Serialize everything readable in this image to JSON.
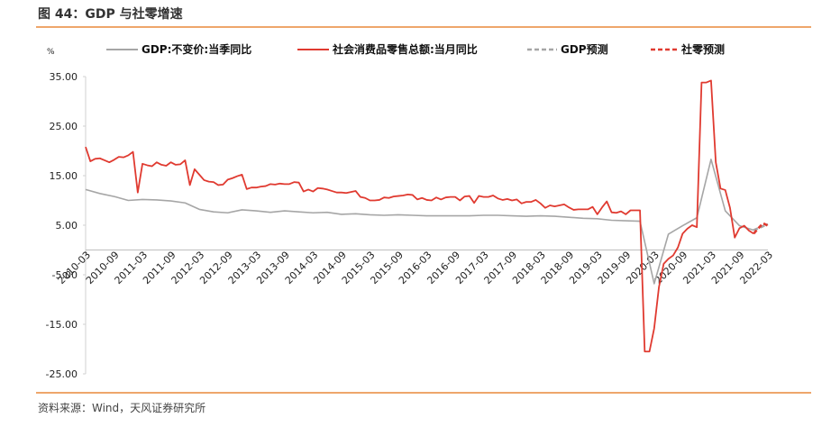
{
  "header": {
    "title": "图 44：GDP 与社零增速"
  },
  "chart_data": {
    "type": "line",
    "y_unit": "%",
    "xlim": [
      "2010-03",
      "2022-03"
    ],
    "xticks": [
      "2010-03",
      "2010-09",
      "2011-03",
      "2011-09",
      "2012-03",
      "2012-09",
      "2013-03",
      "2013-09",
      "2014-03",
      "2014-09",
      "2015-03",
      "2015-09",
      "2016-03",
      "2016-09",
      "2017-03",
      "2017-09",
      "2018-03",
      "2018-09",
      "2019-03",
      "2019-09",
      "2020-03",
      "2020-09",
      "2021-03",
      "2021-09",
      "2022-03"
    ],
    "ylim": [
      -25,
      35
    ],
    "yticks": [
      {
        "value": 35,
        "label": "35.00"
      },
      {
        "value": 25,
        "label": "25.00"
      },
      {
        "value": 15,
        "label": "15.00"
      },
      {
        "value": 5,
        "label": "5.00"
      },
      {
        "value": -5,
        "label": "-5.00"
      },
      {
        "value": -15,
        "label": "-15.00"
      },
      {
        "value": -25,
        "label": "-25.00"
      }
    ],
    "grid": false,
    "legend": "top",
    "series": [
      {
        "name": "GDP:不变价:当季同比",
        "color": "#a6a6a6",
        "dashed": false,
        "x": [
          "2010-03",
          "2010-06",
          "2010-09",
          "2010-12",
          "2011-03",
          "2011-06",
          "2011-09",
          "2011-12",
          "2012-03",
          "2012-06",
          "2012-09",
          "2012-12",
          "2013-03",
          "2013-06",
          "2013-09",
          "2013-12",
          "2014-03",
          "2014-06",
          "2014-09",
          "2014-12",
          "2015-03",
          "2015-06",
          "2015-09",
          "2015-12",
          "2016-03",
          "2016-06",
          "2016-09",
          "2016-12",
          "2017-03",
          "2017-06",
          "2017-09",
          "2017-12",
          "2018-03",
          "2018-06",
          "2018-09",
          "2018-12",
          "2019-03",
          "2019-06",
          "2019-09",
          "2019-12",
          "2020-03",
          "2020-06",
          "2020-09",
          "2020-12",
          "2021-03",
          "2021-06",
          "2021-09",
          "2021-12"
        ],
        "values": [
          12.2,
          11.4,
          10.8,
          10.0,
          10.2,
          10.1,
          9.9,
          9.5,
          8.2,
          7.7,
          7.5,
          8.1,
          7.9,
          7.6,
          7.9,
          7.7,
          7.5,
          7.6,
          7.2,
          7.3,
          7.1,
          7.0,
          7.1,
          7.0,
          6.9,
          6.9,
          6.9,
          6.9,
          7.0,
          7.0,
          6.9,
          6.8,
          6.9,
          6.8,
          6.6,
          6.4,
          6.3,
          6.0,
          5.9,
          5.8,
          -6.8,
          3.2,
          4.9,
          6.5,
          18.3,
          7.9,
          4.9,
          4.0
        ]
      },
      {
        "name": "社会消费品零售总额:当月同比",
        "color": "#e03a30",
        "dashed": false,
        "x": [
          "2010-03",
          "2010-04",
          "2010-05",
          "2010-06",
          "2010-07",
          "2010-08",
          "2010-09",
          "2010-10",
          "2010-11",
          "2010-12",
          "2011-01",
          "2011-02",
          "2011-03",
          "2011-04",
          "2011-05",
          "2011-06",
          "2011-07",
          "2011-08",
          "2011-09",
          "2011-10",
          "2011-11",
          "2011-12",
          "2012-01",
          "2012-02",
          "2012-03",
          "2012-04",
          "2012-05",
          "2012-06",
          "2012-07",
          "2012-08",
          "2012-09",
          "2012-10",
          "2012-11",
          "2012-12",
          "2013-01",
          "2013-02",
          "2013-03",
          "2013-04",
          "2013-05",
          "2013-06",
          "2013-07",
          "2013-08",
          "2013-09",
          "2013-10",
          "2013-11",
          "2013-12",
          "2014-01",
          "2014-02",
          "2014-03",
          "2014-04",
          "2014-05",
          "2014-06",
          "2014-07",
          "2014-08",
          "2014-09",
          "2014-10",
          "2014-11",
          "2014-12",
          "2015-01",
          "2015-02",
          "2015-03",
          "2015-04",
          "2015-05",
          "2015-06",
          "2015-07",
          "2015-08",
          "2015-09",
          "2015-10",
          "2015-11",
          "2015-12",
          "2016-01",
          "2016-02",
          "2016-03",
          "2016-04",
          "2016-05",
          "2016-06",
          "2016-07",
          "2016-08",
          "2016-09",
          "2016-10",
          "2016-11",
          "2016-12",
          "2017-01",
          "2017-02",
          "2017-03",
          "2017-04",
          "2017-05",
          "2017-06",
          "2017-07",
          "2017-08",
          "2017-09",
          "2017-10",
          "2017-11",
          "2017-12",
          "2018-01",
          "2018-02",
          "2018-03",
          "2018-04",
          "2018-05",
          "2018-06",
          "2018-07",
          "2018-08",
          "2018-09",
          "2018-10",
          "2018-11",
          "2018-12",
          "2019-01",
          "2019-02",
          "2019-03",
          "2019-04",
          "2019-05",
          "2019-06",
          "2019-07",
          "2019-08",
          "2019-09",
          "2019-10",
          "2019-11",
          "2019-12",
          "2020-01",
          "2020-02",
          "2020-03",
          "2020-04",
          "2020-05",
          "2020-06",
          "2020-07",
          "2020-08",
          "2020-09",
          "2020-10",
          "2020-11",
          "2020-12",
          "2021-01",
          "2021-02",
          "2021-03",
          "2021-04",
          "2021-05",
          "2021-06",
          "2021-07",
          "2021-08",
          "2021-09",
          "2021-10",
          "2021-11",
          "2021-12"
        ],
        "values": [
          20.8,
          17.9,
          18.4,
          18.5,
          18.1,
          17.7,
          18.2,
          18.8,
          18.7,
          19.1,
          19.8,
          11.6,
          17.4,
          17.1,
          16.9,
          17.7,
          17.2,
          17.0,
          17.7,
          17.2,
          17.3,
          18.1,
          13.1,
          16.3,
          15.2,
          14.1,
          13.8,
          13.7,
          13.1,
          13.2,
          14.2,
          14.5,
          14.9,
          15.2,
          12.3,
          12.6,
          12.6,
          12.8,
          12.9,
          13.3,
          13.2,
          13.4,
          13.3,
          13.3,
          13.7,
          13.6,
          11.8,
          12.2,
          11.8,
          12.5,
          12.4,
          12.2,
          11.9,
          11.6,
          11.6,
          11.5,
          11.7,
          11.9,
          10.7,
          10.5,
          10.0,
          10.0,
          10.1,
          10.6,
          10.5,
          10.8,
          10.9,
          11.0,
          11.2,
          11.1,
          10.2,
          10.5,
          10.1,
          10.0,
          10.6,
          10.2,
          10.6,
          10.7,
          10.7,
          10.0,
          10.8,
          10.9,
          9.5,
          10.9,
          10.7,
          10.7,
          11.0,
          10.4,
          10.1,
          10.3,
          10.0,
          10.2,
          9.4,
          9.7,
          9.7,
          10.1,
          9.4,
          8.5,
          9.0,
          8.8,
          9.0,
          9.2,
          8.6,
          8.1,
          8.2,
          8.2,
          8.2,
          8.7,
          7.2,
          8.6,
          9.8,
          7.6,
          7.5,
          7.8,
          7.2,
          8.0,
          8.0,
          8.0,
          -20.5,
          -20.5,
          -15.8,
          -7.5,
          -2.8,
          -1.8,
          -1.1,
          0.5,
          3.3,
          4.3,
          5.0,
          4.6,
          33.8,
          33.8,
          34.2,
          17.7,
          12.4,
          12.1,
          8.5,
          2.5,
          4.4,
          4.9,
          3.9,
          3.3
        ]
      },
      {
        "name": "GDP预测",
        "color": "#a6a6a6",
        "dashed": true,
        "x": [
          "2021-12",
          "2022-03"
        ],
        "values": [
          4.0,
          5.2
        ]
      },
      {
        "name": "社零预测",
        "color": "#e03a30",
        "dashed": true,
        "x": [
          "2021-12",
          "2022-01",
          "2022-02",
          "2022-03"
        ],
        "values": [
          3.3,
          4.4,
          5.4,
          4.9
        ]
      }
    ]
  },
  "footer": {
    "source": "资料来源：Wind，天风证券研究所"
  }
}
